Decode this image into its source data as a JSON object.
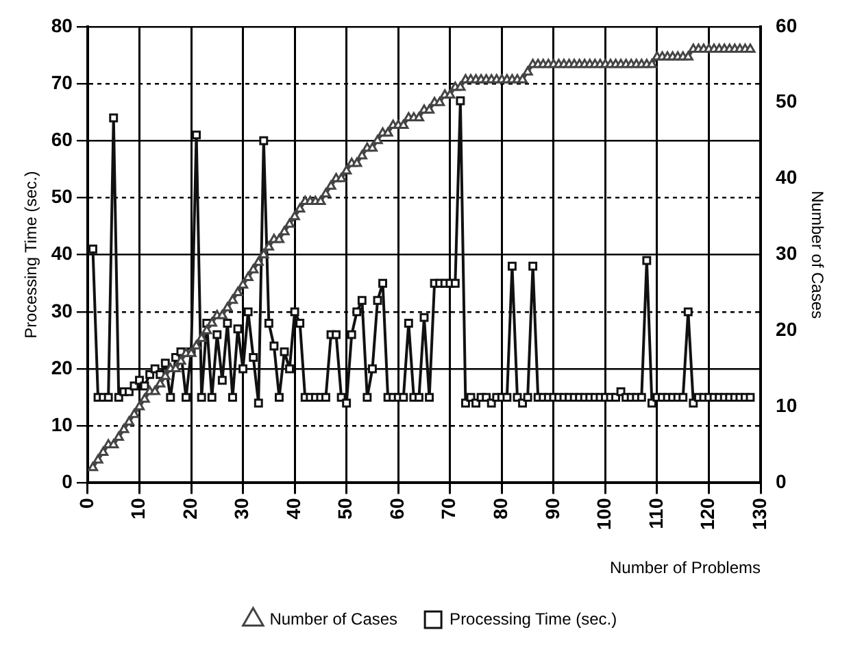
{
  "chart_data": {
    "type": "line",
    "xlabel": "Number of Problems",
    "ylabel": "Processing Time (sec.)",
    "y2label": "Number of Cases",
    "x": [
      1,
      2,
      3,
      4,
      5,
      6,
      7,
      8,
      9,
      10,
      11,
      12,
      13,
      14,
      15,
      16,
      17,
      18,
      19,
      20,
      21,
      22,
      23,
      24,
      25,
      26,
      27,
      28,
      29,
      30,
      31,
      32,
      33,
      34,
      35,
      36,
      37,
      38,
      39,
      40,
      41,
      42,
      43,
      44,
      45,
      46,
      47,
      48,
      49,
      50,
      51,
      52,
      53,
      54,
      55,
      56,
      57,
      58,
      59,
      60,
      61,
      62,
      63,
      64,
      65,
      66,
      67,
      68,
      69,
      70,
      71,
      72,
      73,
      74,
      75,
      76,
      77,
      78,
      79,
      80,
      81,
      82,
      83,
      84,
      85,
      86,
      87,
      88,
      89,
      90,
      91,
      92,
      93,
      94,
      95,
      96,
      97,
      98,
      99,
      100,
      101,
      102,
      103,
      104,
      105,
      106,
      107,
      108,
      109,
      110,
      111,
      112,
      113,
      114,
      115,
      116,
      117,
      118,
      119,
      120,
      121,
      122,
      123,
      124,
      125,
      126,
      127,
      128
    ],
    "series": [
      {
        "name": "Number of Cases",
        "color": "#444444",
        "axis": "y2",
        "marker": "triangle",
        "values": [
          2,
          3,
          4,
          5,
          5,
          6,
          7,
          8,
          9,
          10,
          11,
          12,
          12,
          13,
          14,
          15,
          15,
          16,
          17,
          17,
          18,
          19,
          20,
          21,
          22,
          22,
          23,
          24,
          25,
          26,
          27,
          28,
          29,
          30,
          31,
          32,
          32,
          33,
          34,
          35,
          36,
          37,
          37,
          37,
          37,
          38,
          39,
          40,
          40,
          41,
          42,
          42,
          43,
          44,
          44,
          45,
          46,
          46,
          47,
          47,
          47,
          48,
          48,
          48,
          49,
          49,
          50,
          50,
          51,
          51,
          52,
          52,
          53,
          53,
          53,
          53,
          53,
          53,
          53,
          53,
          53,
          53,
          53,
          53,
          54,
          55,
          55,
          55,
          55,
          55,
          55,
          55,
          55,
          55,
          55,
          55,
          55,
          55,
          55,
          55,
          55,
          55,
          55,
          55,
          55,
          55,
          55,
          55,
          55,
          56,
          56,
          56,
          56,
          56,
          56,
          56,
          57,
          57,
          57,
          57,
          57,
          57,
          57,
          57,
          57,
          57,
          57,
          57
        ]
      },
      {
        "name": "Processing Time (sec.)",
        "color": "#111111",
        "axis": "y",
        "marker": "square",
        "values": [
          41,
          15,
          15,
          15,
          64,
          15,
          16,
          16,
          17,
          18,
          17,
          19,
          20,
          19,
          21,
          15,
          22,
          23,
          15,
          23,
          61,
          15,
          28,
          15,
          26,
          18,
          28,
          15,
          27,
          20,
          30,
          22,
          14,
          60,
          28,
          24,
          15,
          23,
          20,
          30,
          28,
          15,
          15,
          15,
          15,
          15,
          26,
          26,
          15,
          14,
          26,
          30,
          32,
          15,
          20,
          32,
          35,
          15,
          15,
          15,
          15,
          28,
          15,
          15,
          29,
          15,
          35,
          35,
          35,
          35,
          35,
          67,
          14,
          15,
          14,
          15,
          15,
          14,
          15,
          15,
          15,
          38,
          15,
          14,
          15,
          38,
          15,
          15,
          15,
          15,
          15,
          15,
          15,
          15,
          15,
          15,
          15,
          15,
          15,
          15,
          15,
          15,
          16,
          15,
          15,
          15,
          15,
          39,
          14,
          15,
          15,
          15,
          15,
          15,
          15,
          30,
          14,
          15,
          15,
          15,
          15,
          15,
          15,
          15,
          15,
          15,
          15,
          15
        ]
      }
    ],
    "xlim": [
      0,
      130
    ],
    "xticks": [
      0,
      10,
      20,
      30,
      40,
      50,
      60,
      70,
      80,
      90,
      100,
      110,
      120,
      130
    ],
    "ylim": [
      0,
      80
    ],
    "yticks": [
      0,
      10,
      20,
      30,
      40,
      50,
      60,
      70,
      80
    ],
    "y2lim": [
      0,
      60
    ],
    "y2ticks": [
      0,
      10,
      20,
      30,
      40,
      50,
      60
    ],
    "grid": true,
    "legend": "bottom",
    "line_style": "solid"
  }
}
